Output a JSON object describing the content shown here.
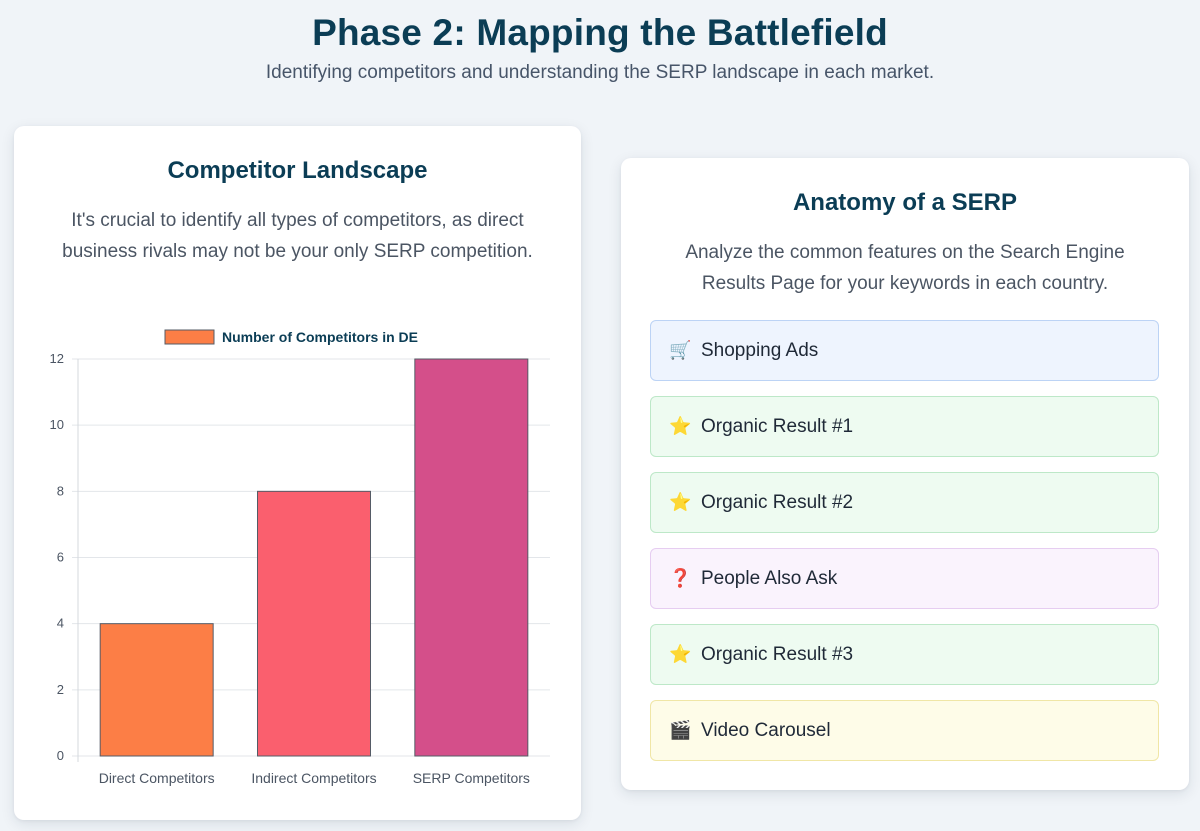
{
  "header": {
    "title": "Phase 2: Mapping the Battlefield",
    "subtitle": "Identifying competitors and understanding the SERP landscape in each market."
  },
  "competitor_card": {
    "heading": "Competitor Landscape",
    "description": "It's crucial to identify all types of competitors, as direct business rivals may not be your only SERP competition."
  },
  "serp_card": {
    "heading": "Anatomy of a SERP",
    "description": "Analyze the common features on the Search Engine Results Page for your keywords in each country.",
    "items": [
      {
        "label": "Shopping Ads",
        "icon": "cart-icon",
        "glyph": "🛒",
        "bg": "#eef4fe",
        "border": "#bcd3f5"
      },
      {
        "label": "Organic Result #1",
        "icon": "star-icon",
        "glyph": "⭐",
        "bg": "#eefbf1",
        "border": "#bde8c8"
      },
      {
        "label": "Organic Result #2",
        "icon": "star-icon",
        "glyph": "⭐",
        "bg": "#eefbf1",
        "border": "#bde8c8"
      },
      {
        "label": "People Also Ask",
        "icon": "question-icon",
        "glyph": "❓",
        "bg": "#faf3fd",
        "border": "#e6cdf1"
      },
      {
        "label": "Organic Result #3",
        "icon": "star-icon",
        "glyph": "⭐",
        "bg": "#eefbf1",
        "border": "#bde8c8"
      },
      {
        "label": "Video Carousel",
        "icon": "clapper-icon",
        "glyph": "🎬",
        "bg": "#fefce8",
        "border": "#f0e6a6"
      }
    ]
  },
  "chart_data": {
    "type": "bar",
    "categories": [
      "Direct Competitors",
      "Indirect Competitors",
      "SERP Competitors"
    ],
    "series": [
      {
        "name": "Number of Competitors in DE",
        "values": [
          4,
          8,
          12
        ]
      }
    ],
    "colors": [
      "#fc7e46",
      "#fa5f6e",
      "#d44f8a"
    ],
    "legend_color": "#fc7e46",
    "ylim": [
      0,
      12
    ],
    "yticks": [
      0,
      2,
      4,
      6,
      8,
      10,
      12
    ],
    "grid": true,
    "legend": "top-center",
    "title": "",
    "xlabel": "",
    "ylabel": ""
  }
}
